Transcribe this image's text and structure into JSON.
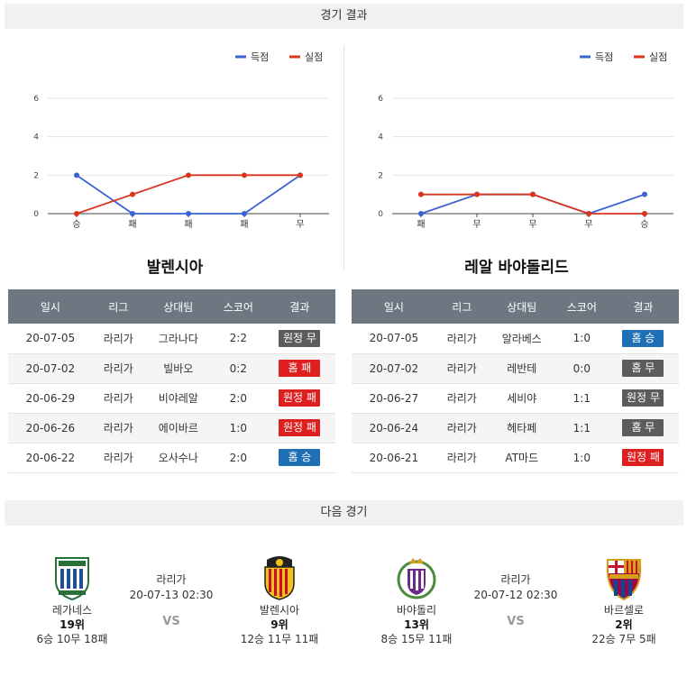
{
  "sections": {
    "results_title": "경기 결과",
    "next_title": "다음 경기"
  },
  "legend": {
    "scored": "득점",
    "conceded": "실점"
  },
  "colors": {
    "scored": "#3a63d1",
    "conceded": "#d9341e",
    "win": "#1f6fb5",
    "draw": "#5c5c5c",
    "loss": "#dd1f1f",
    "header": "#6c7781"
  },
  "chart_data": [
    {
      "type": "line",
      "categories": [
        "승",
        "패",
        "패",
        "패",
        "무"
      ],
      "ylim": [
        0,
        6
      ],
      "yticks": [
        0,
        2,
        4,
        6
      ],
      "grid": true,
      "legend_position": "top-right",
      "series": [
        {
          "name": "득점",
          "values": [
            2,
            0,
            0,
            0,
            2
          ]
        },
        {
          "name": "실점",
          "values": [
            0,
            1,
            2,
            2,
            2
          ]
        }
      ]
    },
    {
      "type": "line",
      "categories": [
        "패",
        "무",
        "무",
        "무",
        "승"
      ],
      "ylim": [
        0,
        6
      ],
      "yticks": [
        0,
        2,
        4,
        6
      ],
      "grid": true,
      "legend_position": "top-right",
      "series": [
        {
          "name": "득점",
          "values": [
            0,
            1,
            1,
            0,
            1
          ]
        },
        {
          "name": "실점",
          "values": [
            1,
            1,
            1,
            0,
            0
          ]
        }
      ]
    }
  ],
  "teams": {
    "left": {
      "name": "발렌시아"
    },
    "right": {
      "name": "레알 바야돌리드"
    }
  },
  "table_headers": [
    "일시",
    "리그",
    "상대팀",
    "스코어",
    "결과"
  ],
  "results_left": [
    {
      "date": "20-07-05",
      "league": "라리가",
      "opponent": "그라나다",
      "score": "2:2",
      "result": "원정 무",
      "type": "draw"
    },
    {
      "date": "20-07-02",
      "league": "라리가",
      "opponent": "빌바오",
      "score": "0:2",
      "result": "홈 패",
      "type": "loss"
    },
    {
      "date": "20-06-29",
      "league": "라리가",
      "opponent": "비야레알",
      "score": "2:0",
      "result": "원정 패",
      "type": "loss"
    },
    {
      "date": "20-06-26",
      "league": "라리가",
      "opponent": "에이바르",
      "score": "1:0",
      "result": "원정 패",
      "type": "loss"
    },
    {
      "date": "20-06-22",
      "league": "라리가",
      "opponent": "오사수나",
      "score": "2:0",
      "result": "홈 승",
      "type": "win"
    }
  ],
  "results_right": [
    {
      "date": "20-07-05",
      "league": "라리가",
      "opponent": "알라베스",
      "score": "1:0",
      "result": "홈 승",
      "type": "win"
    },
    {
      "date": "20-07-02",
      "league": "라리가",
      "opponent": "레반테",
      "score": "0:0",
      "result": "홈 무",
      "type": "draw"
    },
    {
      "date": "20-06-27",
      "league": "라리가",
      "opponent": "세비야",
      "score": "1:1",
      "result": "원정 무",
      "type": "draw"
    },
    {
      "date": "20-06-24",
      "league": "라리가",
      "opponent": "헤타페",
      "score": "1:1",
      "result": "홈 무",
      "type": "draw"
    },
    {
      "date": "20-06-21",
      "league": "라리가",
      "opponent": "AT마드",
      "score": "1:0",
      "result": "원정 패",
      "type": "loss"
    }
  ],
  "next_matches": [
    {
      "league": "라리가",
      "datetime": "20-07-13 02:30",
      "vs": "VS",
      "home": {
        "name": "레가네스",
        "rank": "19위",
        "record": "6승 10무 18패",
        "crest": "leganes-crest"
      },
      "away": {
        "name": "발렌시아",
        "rank": "9위",
        "record": "12승 11무 11패",
        "crest": "valencia-crest"
      }
    },
    {
      "league": "라리가",
      "datetime": "20-07-12 02:30",
      "vs": "VS",
      "home": {
        "name": "바야돌리",
        "rank": "13위",
        "record": "8승 15무 11패",
        "crest": "valladolid-crest"
      },
      "away": {
        "name": "바르셀로",
        "rank": "2위",
        "record": "22승 7무 5패",
        "crest": "barcelona-crest"
      }
    }
  ]
}
